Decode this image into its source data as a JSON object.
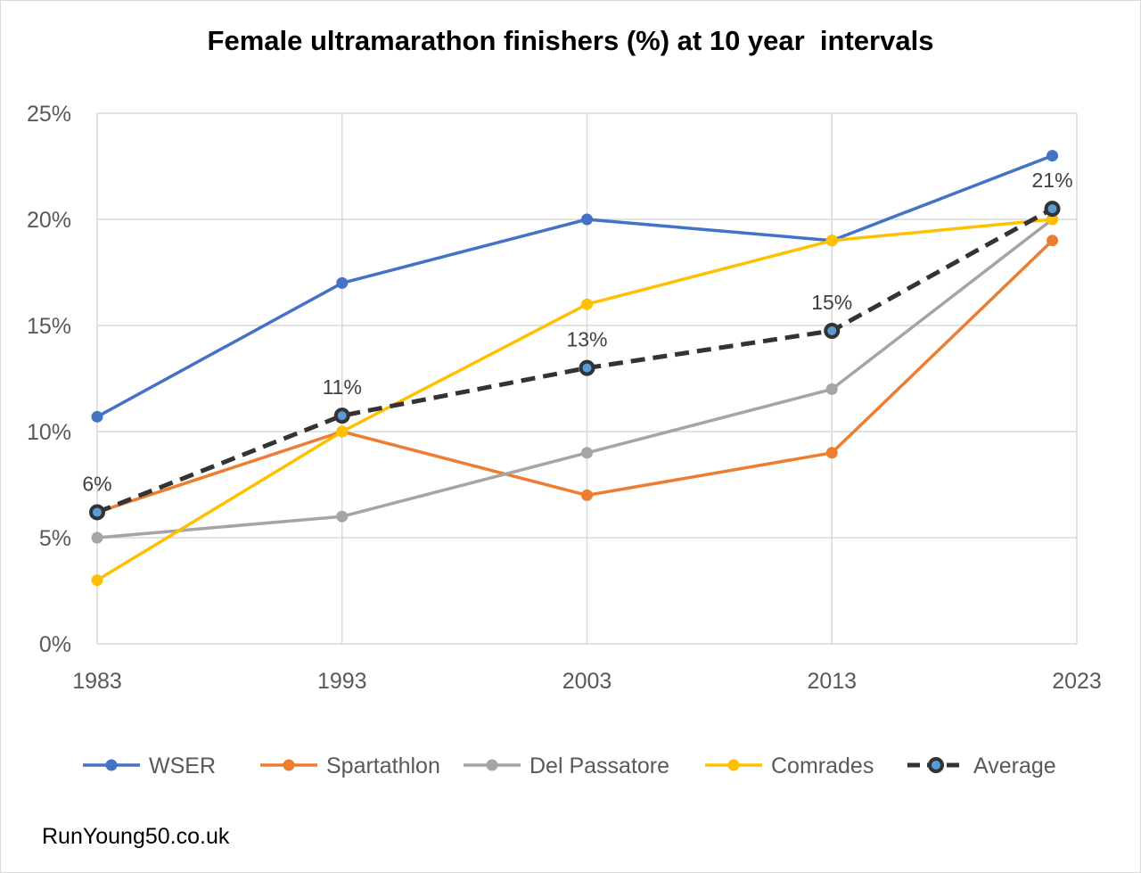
{
  "chart_data": {
    "type": "line",
    "title": "Female ultramarathon finishers (%) at 10 year  intervals",
    "xlabel": "",
    "ylabel": "",
    "x": [
      1983,
      1993,
      2003,
      2013,
      2022
    ],
    "xlim": [
      1983,
      2023
    ],
    "x_ticks": [
      "1983",
      "1993",
      "2003",
      "2013",
      "2023"
    ],
    "ylim": [
      0,
      25
    ],
    "y_ticks": [
      "0%",
      "5%",
      "10%",
      "15%",
      "20%",
      "25%"
    ],
    "grid": true,
    "legend": "bottom",
    "series": [
      {
        "name": "WSER",
        "color": "#4472C4",
        "values": [
          10.7,
          17,
          20,
          19,
          23
        ]
      },
      {
        "name": "Spartathlon",
        "color": "#ED7D31",
        "values": [
          6.2,
          10,
          7,
          9,
          19
        ]
      },
      {
        "name": "Del Passatore",
        "color": "#A5A5A5",
        "values": [
          5,
          6,
          9,
          12,
          20
        ]
      },
      {
        "name": "Comrades",
        "color": "#FFC000",
        "values": [
          3,
          10,
          16,
          19,
          20
        ]
      },
      {
        "name": "Average",
        "color": "#333333",
        "dashed": true,
        "values": [
          6.2,
          10.75,
          13,
          14.75,
          20.5
        ],
        "data_labels": [
          "6%",
          "11%",
          "13%",
          "15%",
          "21%"
        ]
      }
    ]
  },
  "footer": "RunYoung50.co.uk"
}
